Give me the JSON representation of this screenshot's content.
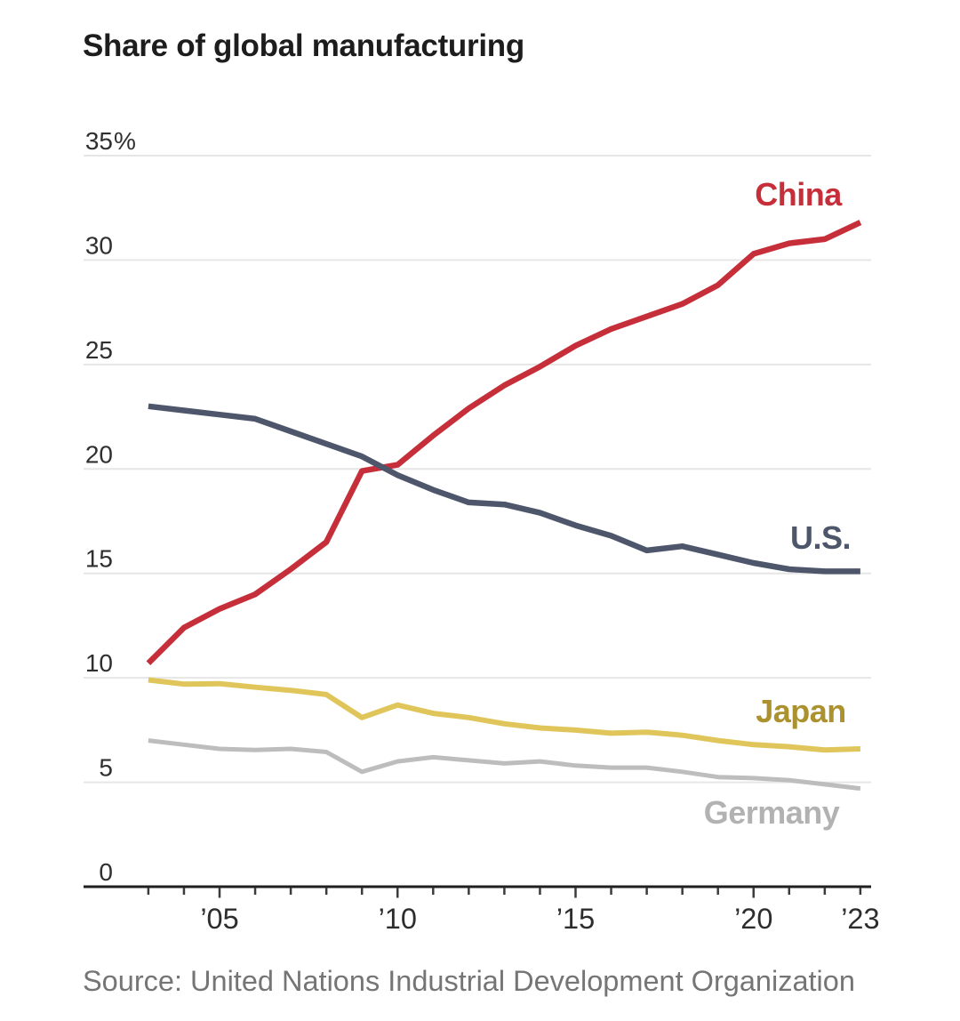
{
  "title": "Share of global manufacturing",
  "source": "Source: United Nations Industrial Development Organization",
  "chart_data": {
    "type": "line",
    "x_years": [
      2003,
      2004,
      2005,
      2006,
      2007,
      2008,
      2009,
      2010,
      2011,
      2012,
      2013,
      2014,
      2015,
      2016,
      2017,
      2018,
      2019,
      2020,
      2021,
      2022,
      2023
    ],
    "series": [
      {
        "name": "China",
        "color": "#c62f39",
        "label_color": "#c62f39",
        "stroke_width": 6.5,
        "values": [
          10.7,
          12.4,
          13.3,
          14.0,
          15.2,
          16.5,
          19.9,
          20.2,
          21.6,
          22.9,
          24.0,
          24.9,
          25.9,
          26.7,
          27.3,
          27.9,
          28.8,
          30.3,
          30.8,
          31.0,
          31.8
        ]
      },
      {
        "name": "U.S.",
        "color": "#4d566b",
        "label_color": "#4d566b",
        "stroke_width": 6.5,
        "values": [
          23.0,
          22.8,
          22.6,
          22.4,
          21.8,
          21.2,
          20.6,
          19.7,
          19.0,
          18.4,
          18.3,
          17.9,
          17.3,
          16.8,
          16.1,
          16.3,
          15.9,
          15.5,
          15.2,
          15.1,
          15.1
        ]
      },
      {
        "name": "Japan",
        "color": "#e0c65a",
        "label_color": "#ab922f",
        "stroke_width": 6,
        "values": [
          9.9,
          9.7,
          9.72,
          9.55,
          9.4,
          9.2,
          8.1,
          8.7,
          8.3,
          8.1,
          7.8,
          7.6,
          7.5,
          7.35,
          7.4,
          7.25,
          7.0,
          6.8,
          6.7,
          6.55,
          6.6
        ]
      },
      {
        "name": "Germany",
        "color": "#bdbdbd",
        "label_color": "#b2b2b2",
        "stroke_width": 5,
        "values": [
          7.0,
          6.8,
          6.6,
          6.55,
          6.6,
          6.45,
          5.5,
          6.0,
          6.2,
          6.05,
          5.9,
          6.0,
          5.8,
          5.7,
          5.7,
          5.5,
          5.25,
          5.2,
          5.1,
          4.9,
          4.7
        ]
      }
    ],
    "ylim": [
      0,
      35
    ],
    "yticks": [
      {
        "value": 0,
        "label": "0",
        "suffix": ""
      },
      {
        "value": 5,
        "label": "5",
        "suffix": ""
      },
      {
        "value": 10,
        "label": "10",
        "suffix": ""
      },
      {
        "value": 15,
        "label": "15",
        "suffix": ""
      },
      {
        "value": 20,
        "label": "20",
        "suffix": ""
      },
      {
        "value": 25,
        "label": "25",
        "suffix": ""
      },
      {
        "value": 30,
        "label": "30",
        "suffix": ""
      },
      {
        "value": 35,
        "label": "35",
        "suffix": "%"
      }
    ],
    "xticks": [
      {
        "year": 2005,
        "label": "’05"
      },
      {
        "year": 2010,
        "label": "’10"
      },
      {
        "year": 2015,
        "label": "’15"
      },
      {
        "year": 2020,
        "label": "’20"
      },
      {
        "year": 2023,
        "label": "’23"
      }
    ],
    "grid": "horizontal",
    "legend": "inline-labels",
    "title": "Share of global manufacturing",
    "xlabel": "",
    "ylabel": ""
  }
}
